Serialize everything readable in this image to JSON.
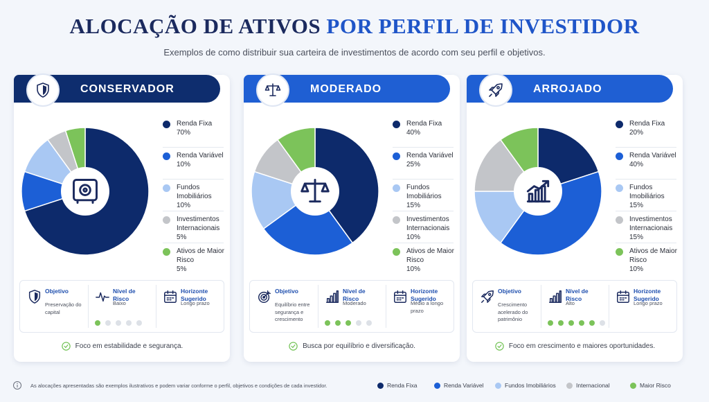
{
  "header": {
    "title_main": "ALOCAÇÃO DE ATIVOS",
    "title_accent": "POR PERFIL DE INVESTIDOR",
    "subtitle": "Exemplos de como distribuir sua carteira de investimentos de acordo com seu perfil e objetivos."
  },
  "chart_data": [
    {
      "type": "pie",
      "title": "CONSERVADOR",
      "categories": [
        "Renda Fixa",
        "Renda Variável",
        "Fundos Imobiliários",
        "Investimentos Internacionais",
        "Ativos de Maior Risco"
      ],
      "values": [
        70,
        10,
        10,
        5,
        5
      ],
      "value_labels": [
        "70%",
        "10%",
        "10%",
        "5%",
        "5%"
      ],
      "colors": [
        "#0d2a6b",
        "#1c5fd6",
        "#a9c8f3",
        "#c3c5c9",
        "#7cc35a"
      ]
    },
    {
      "type": "pie",
      "title": "MODERADO",
      "categories": [
        "Renda Fixa",
        "Renda Variável",
        "Fundos Imobiliários",
        "Investimentos Internacionais",
        "Ativos de Maior Risco"
      ],
      "values": [
        40,
        25,
        15,
        10,
        10
      ],
      "value_labels": [
        "40%",
        "25%",
        "15%",
        "10%",
        "10%"
      ],
      "colors": [
        "#0d2a6b",
        "#1c5fd6",
        "#a9c8f3",
        "#c3c5c9",
        "#7cc35a"
      ]
    },
    {
      "type": "pie",
      "title": "ARROJADO",
      "categories": [
        "Renda Fixa",
        "Renda Variável",
        "Fundos Imobiliários",
        "Investimentos Internacionais",
        "Ativos de Maior Risco"
      ],
      "values": [
        20,
        40,
        15,
        15,
        10
      ],
      "value_labels": [
        "20%",
        "40%",
        "15%",
        "15%",
        "10%"
      ],
      "colors": [
        "#0d2a6b",
        "#1c5fd6",
        "#a9c8f3",
        "#c3c5c9",
        "#7cc35a"
      ]
    }
  ],
  "profiles": [
    {
      "header_color": "#0e2d6e",
      "objective_label": "Objetivo",
      "objective": "Preservação do capital",
      "risk_label": "Nível de Risco",
      "risk": "Baixo",
      "risk_filled": 1,
      "risk_total": 5,
      "horizon_label": "Horizonte Sugerido",
      "horizon": "Longo prazo",
      "focus": "Foco em estabilidade e segurança."
    },
    {
      "header_color": "#1f5fd3",
      "objective_label": "Objetivo",
      "objective": "Equilíbrio entre segurança e crescimento",
      "risk_label": "Nível de Risco",
      "risk": "Moderado",
      "risk_filled": 3,
      "risk_total": 5,
      "horizon_label": "Horizonte Sugerido",
      "horizon": "Médio a longo prazo",
      "focus": "Busca por equilíbrio e diversificação."
    },
    {
      "header_color": "#1f5fd3",
      "objective_label": "Objetivo",
      "objective": "Crescimento acelerado do patrimônio",
      "risk_label": "Nível de Risco",
      "risk": "Alto",
      "risk_filled": 5,
      "risk_total": 6,
      "horizon_label": "Horizonte Sugerido",
      "horizon": "Longo prazo",
      "focus": "Foco em crescimento e maiores oportunidades."
    }
  ],
  "footer": {
    "note": "As alocações apresentadas são exemplos ilustrativos e podem variar conforme o perfil, objetivos e condições de cada investidor.",
    "legend": [
      "Renda Fixa",
      "Renda Variável",
      "Fundos Imobiliários",
      "Internacional",
      "Maior Risco"
    ]
  }
}
